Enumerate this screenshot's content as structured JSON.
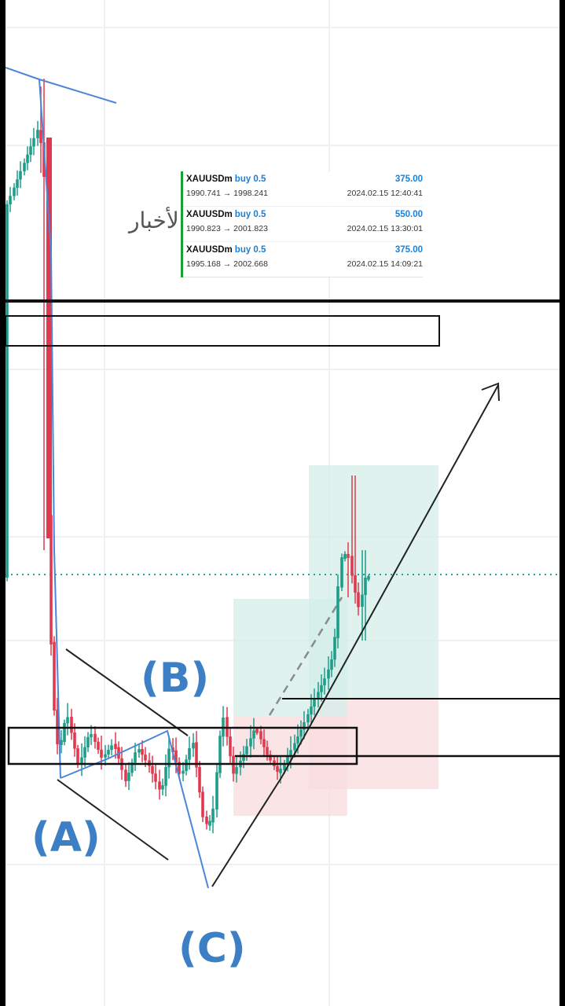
{
  "chart_data": {
    "type": "candlestick",
    "symbol": "XAUUSD",
    "news_label": "الأخبار",
    "wave_labels": [
      "(A)",
      "(B)",
      "(C)"
    ],
    "grid": true,
    "colors": {
      "up": "#1e9e8a",
      "down": "#e0394f",
      "wave_line": "#4a86d8",
      "target_zone": "#d4ede8",
      "stop_zone": "#f9dde0",
      "entry_dotted": "#1ca79a",
      "annotation": "#111111"
    }
  },
  "trades": [
    {
      "symbol": "XAUUSDm",
      "action": "buy 0.5",
      "open_price": "1990.741",
      "close_price": "1998.241",
      "profit": "375.00",
      "time": "2024.02.15 12:40:41"
    },
    {
      "symbol": "XAUUSDm",
      "action": "buy 0.5",
      "open_price": "1990.823",
      "close_price": "2001.823",
      "profit": "550.00",
      "time": "2024.02.15 13:30:01"
    },
    {
      "symbol": "XAUUSDm",
      "action": "buy 0.5",
      "open_price": "1995.168",
      "close_price": "2002.668",
      "profit": "375.00",
      "time": "2024.02.15 14:09:21"
    }
  ]
}
